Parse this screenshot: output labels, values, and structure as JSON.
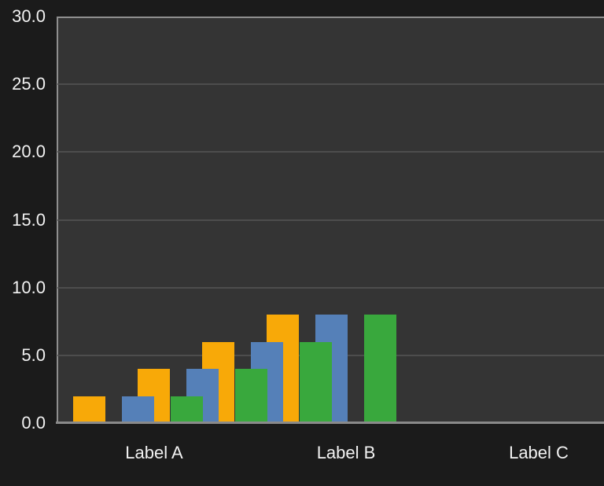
{
  "chart_data": {
    "type": "bar",
    "title": "",
    "categories": [
      "Label A",
      "Label B",
      "Label C"
    ],
    "series": [
      {
        "name": "orange",
        "color": "#F8A908",
        "values": [
          2,
          4,
          6,
          8
        ]
      },
      {
        "name": "blue",
        "color": "#5580B8",
        "values": [
          2,
          4,
          6,
          8
        ]
      },
      {
        "name": "green",
        "color": "#39A83D",
        "values": [
          2,
          4,
          6,
          8
        ]
      }
    ],
    "y_axis": {
      "tick_labels": [
        "30.0",
        "25.0",
        "20.0",
        "15.0",
        "10.0",
        "5.0",
        "0.0"
      ],
      "tick_values": [
        30,
        25,
        20,
        15,
        10,
        5,
        0
      ],
      "min": 0,
      "max": 30,
      "step": 5
    },
    "x_axis": {
      "tick_labels": [
        "Label A",
        "Label B",
        "Label C"
      ]
    },
    "grid": true,
    "legend": false,
    "notes": "Bars of the three series overlap and are offset from the category labels; draw order is orange (back), blue (middle), green (front).",
    "colors": {
      "background": "#1B1B1B",
      "plot_background": "#343434",
      "gridline": "#4D4D4D",
      "axis_line": "#8A8A8A",
      "text": "#F2F2F2"
    }
  }
}
